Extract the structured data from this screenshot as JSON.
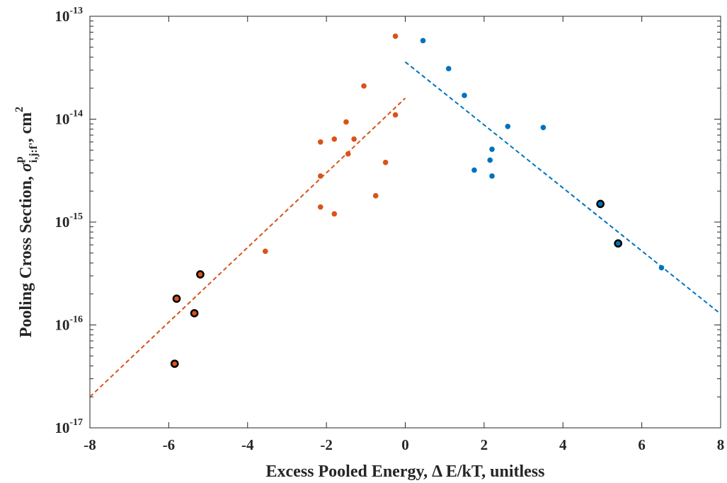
{
  "chart_data": {
    "type": "scatter",
    "xlabel": "Excess Pooled Energy, Δ E/kT, unitless",
    "ylabel": {
      "prefix": "Pooling Cross Section, ",
      "symbol": "σ",
      "superscript": "p",
      "subscript": "i,j:f'",
      "suffix": ", cm",
      "unit_power": "2"
    },
    "xlim": [
      -8,
      8
    ],
    "ylim": [
      1e-17,
      1e-13
    ],
    "yscale": "log",
    "grid": false,
    "xticks": [
      "-8",
      "-6",
      "-4",
      "-2",
      "0",
      "2",
      "4",
      "6",
      "8"
    ],
    "yticks": [
      {
        "base": "10",
        "exponent": "-17",
        "value": 1e-17
      },
      {
        "base": "10",
        "exponent": "-16",
        "value": 1e-16
      },
      {
        "base": "10",
        "exponent": "-15",
        "value": 1e-15
      },
      {
        "base": "10",
        "exponent": "-14",
        "value": 1e-14
      },
      {
        "base": "10",
        "exponent": "-13",
        "value": 1e-13
      }
    ],
    "series": [
      {
        "color": "#D95319",
        "marker": "filled-circle",
        "points": [
          {
            "x": -0.25,
            "y": 6.4e-14
          },
          {
            "x": -1.05,
            "y": 2.1e-14
          },
          {
            "x": -0.25,
            "y": 1.1e-14
          },
          {
            "x": -1.5,
            "y": 9.4e-15
          },
          {
            "x": -1.8,
            "y": 6.4e-15
          },
          {
            "x": -1.3,
            "y": 6.4e-15
          },
          {
            "x": -2.15,
            "y": 6e-15
          },
          {
            "x": -1.45,
            "y": 4.6e-15
          },
          {
            "x": -0.5,
            "y": 3.8e-15
          },
          {
            "x": -2.15,
            "y": 2.8e-15
          },
          {
            "x": -0.75,
            "y": 1.8e-15
          },
          {
            "x": -2.15,
            "y": 1.4e-15
          },
          {
            "x": -1.8,
            "y": 1.2e-15
          },
          {
            "x": -3.55,
            "y": 5.2e-16
          }
        ],
        "highlighted_points": [
          {
            "x": -5.2,
            "y": 3.1e-16
          },
          {
            "x": -5.8,
            "y": 1.8e-16
          },
          {
            "x": -5.35,
            "y": 1.3e-16
          },
          {
            "x": -5.85,
            "y": 4.2e-17
          }
        ],
        "fit_line": {
          "style": "dashed",
          "x": [
            -8,
            0
          ],
          "y": [
            2e-17,
            1.6e-14
          ]
        }
      },
      {
        "color": "#0072BD",
        "marker": "filled-circle",
        "points": [
          {
            "x": 0.45,
            "y": 5.8e-14
          },
          {
            "x": 1.1,
            "y": 3.1e-14
          },
          {
            "x": 1.5,
            "y": 1.7e-14
          },
          {
            "x": 2.6,
            "y": 8.5e-15
          },
          {
            "x": 3.5,
            "y": 8.3e-15
          },
          {
            "x": 2.2,
            "y": 5.1e-15
          },
          {
            "x": 2.15,
            "y": 4e-15
          },
          {
            "x": 1.75,
            "y": 3.2e-15
          },
          {
            "x": 2.2,
            "y": 2.8e-15
          },
          {
            "x": 6.5,
            "y": 3.6e-16
          }
        ],
        "highlighted_points": [
          {
            "x": 4.95,
            "y": 1.5e-15
          },
          {
            "x": 5.4,
            "y": 6.2e-16
          }
        ],
        "fit_line": {
          "style": "dashed",
          "x": [
            0,
            8
          ],
          "y": [
            3.6e-14,
            1.28e-16
          ]
        }
      }
    ]
  }
}
